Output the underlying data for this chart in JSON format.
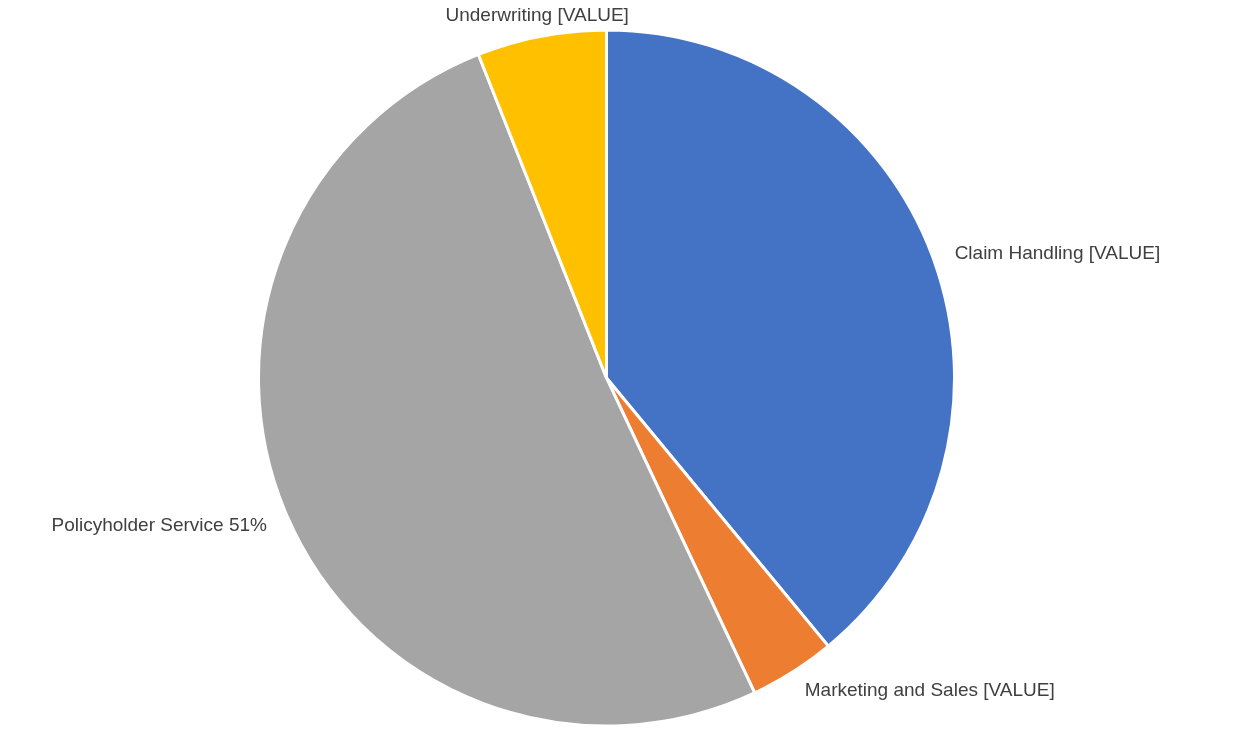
{
  "chart_data": {
    "type": "pie",
    "categories": [
      "Claim Handling",
      "Marketing and Sales",
      "Policyholder Service",
      "Underwriting"
    ],
    "values": [
      39,
      4,
      51,
      6
    ],
    "colors": [
      "#4472c4",
      "#ed7d31",
      "#a5a5a5",
      "#ffc000"
    ],
    "value_labels": [
      "[VALUE]",
      "[VALUE]",
      "51%",
      "[VALUE]"
    ],
    "legend": false
  }
}
